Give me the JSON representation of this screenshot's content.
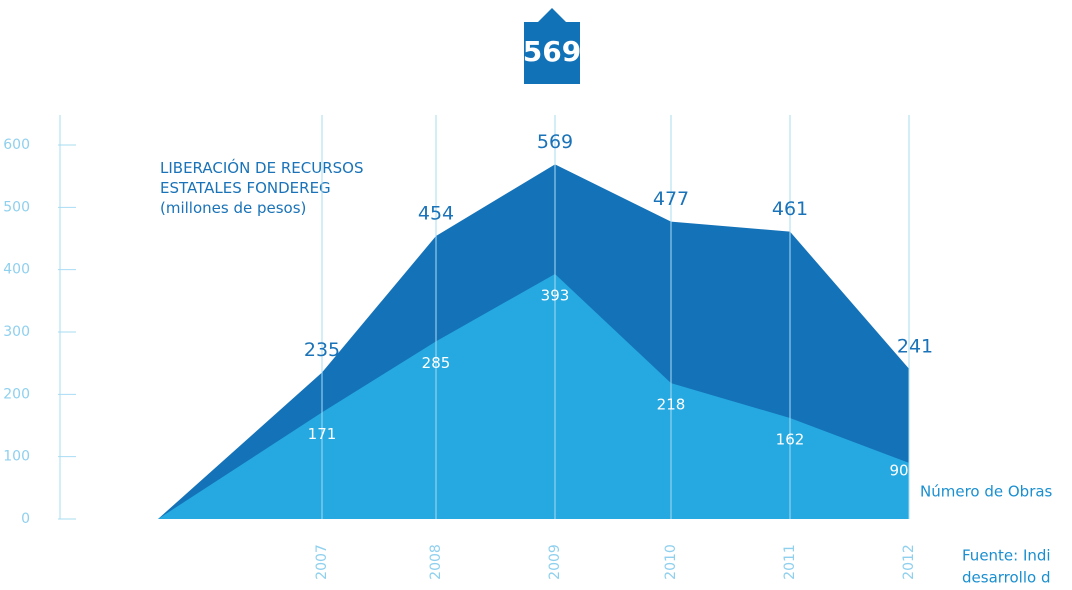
{
  "chart_data": {
    "type": "area",
    "categories": [
      null,
      "2007",
      "2008",
      "2009",
      "2010",
      "2011",
      "2012"
    ],
    "series": [
      {
        "name": "LIBERACIÓN DE RECURSOS\nESTATALES FONDEREG\n(millones de pesos)",
        "color": "#1472b9",
        "values": [
          0,
          235,
          454,
          569,
          477,
          461,
          241
        ]
      },
      {
        "name": "Número de Obras",
        "color": "#25a9e0",
        "values": [
          0,
          171,
          285,
          393,
          218,
          162,
          90
        ]
      }
    ],
    "ylim": [
      0,
      600
    ],
    "yticks": [
      0,
      100,
      200,
      300,
      400,
      500,
      600
    ],
    "grid": true,
    "source": [
      "Fuente: Indi",
      "desarrollo d"
    ]
  }
}
